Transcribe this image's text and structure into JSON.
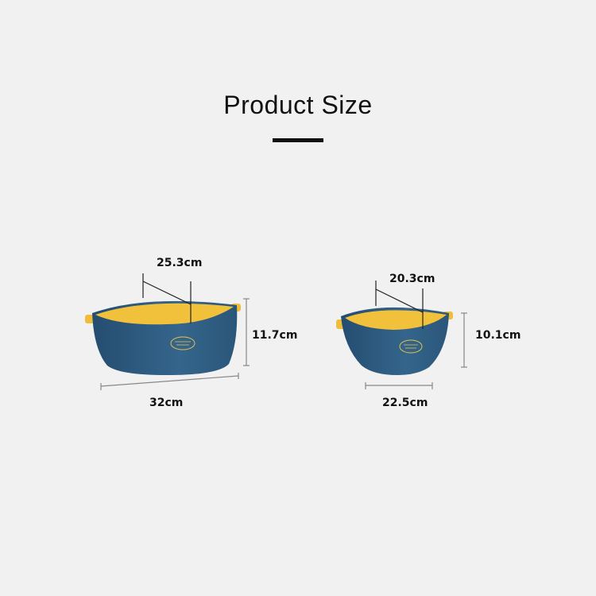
{
  "header": {
    "title": "Product Size"
  },
  "colors": {
    "background": "#f1f1f1",
    "bowl_outer": "#2e5a7f",
    "bowl_inner": "#f2c13c",
    "line": "#222222"
  },
  "large_bowl": {
    "inner_diameter": "25.3cm",
    "height": "11.7cm",
    "length": "32cm"
  },
  "small_bowl": {
    "inner_diameter": "20.3cm",
    "height": "10.1cm",
    "length": "22.5cm"
  }
}
